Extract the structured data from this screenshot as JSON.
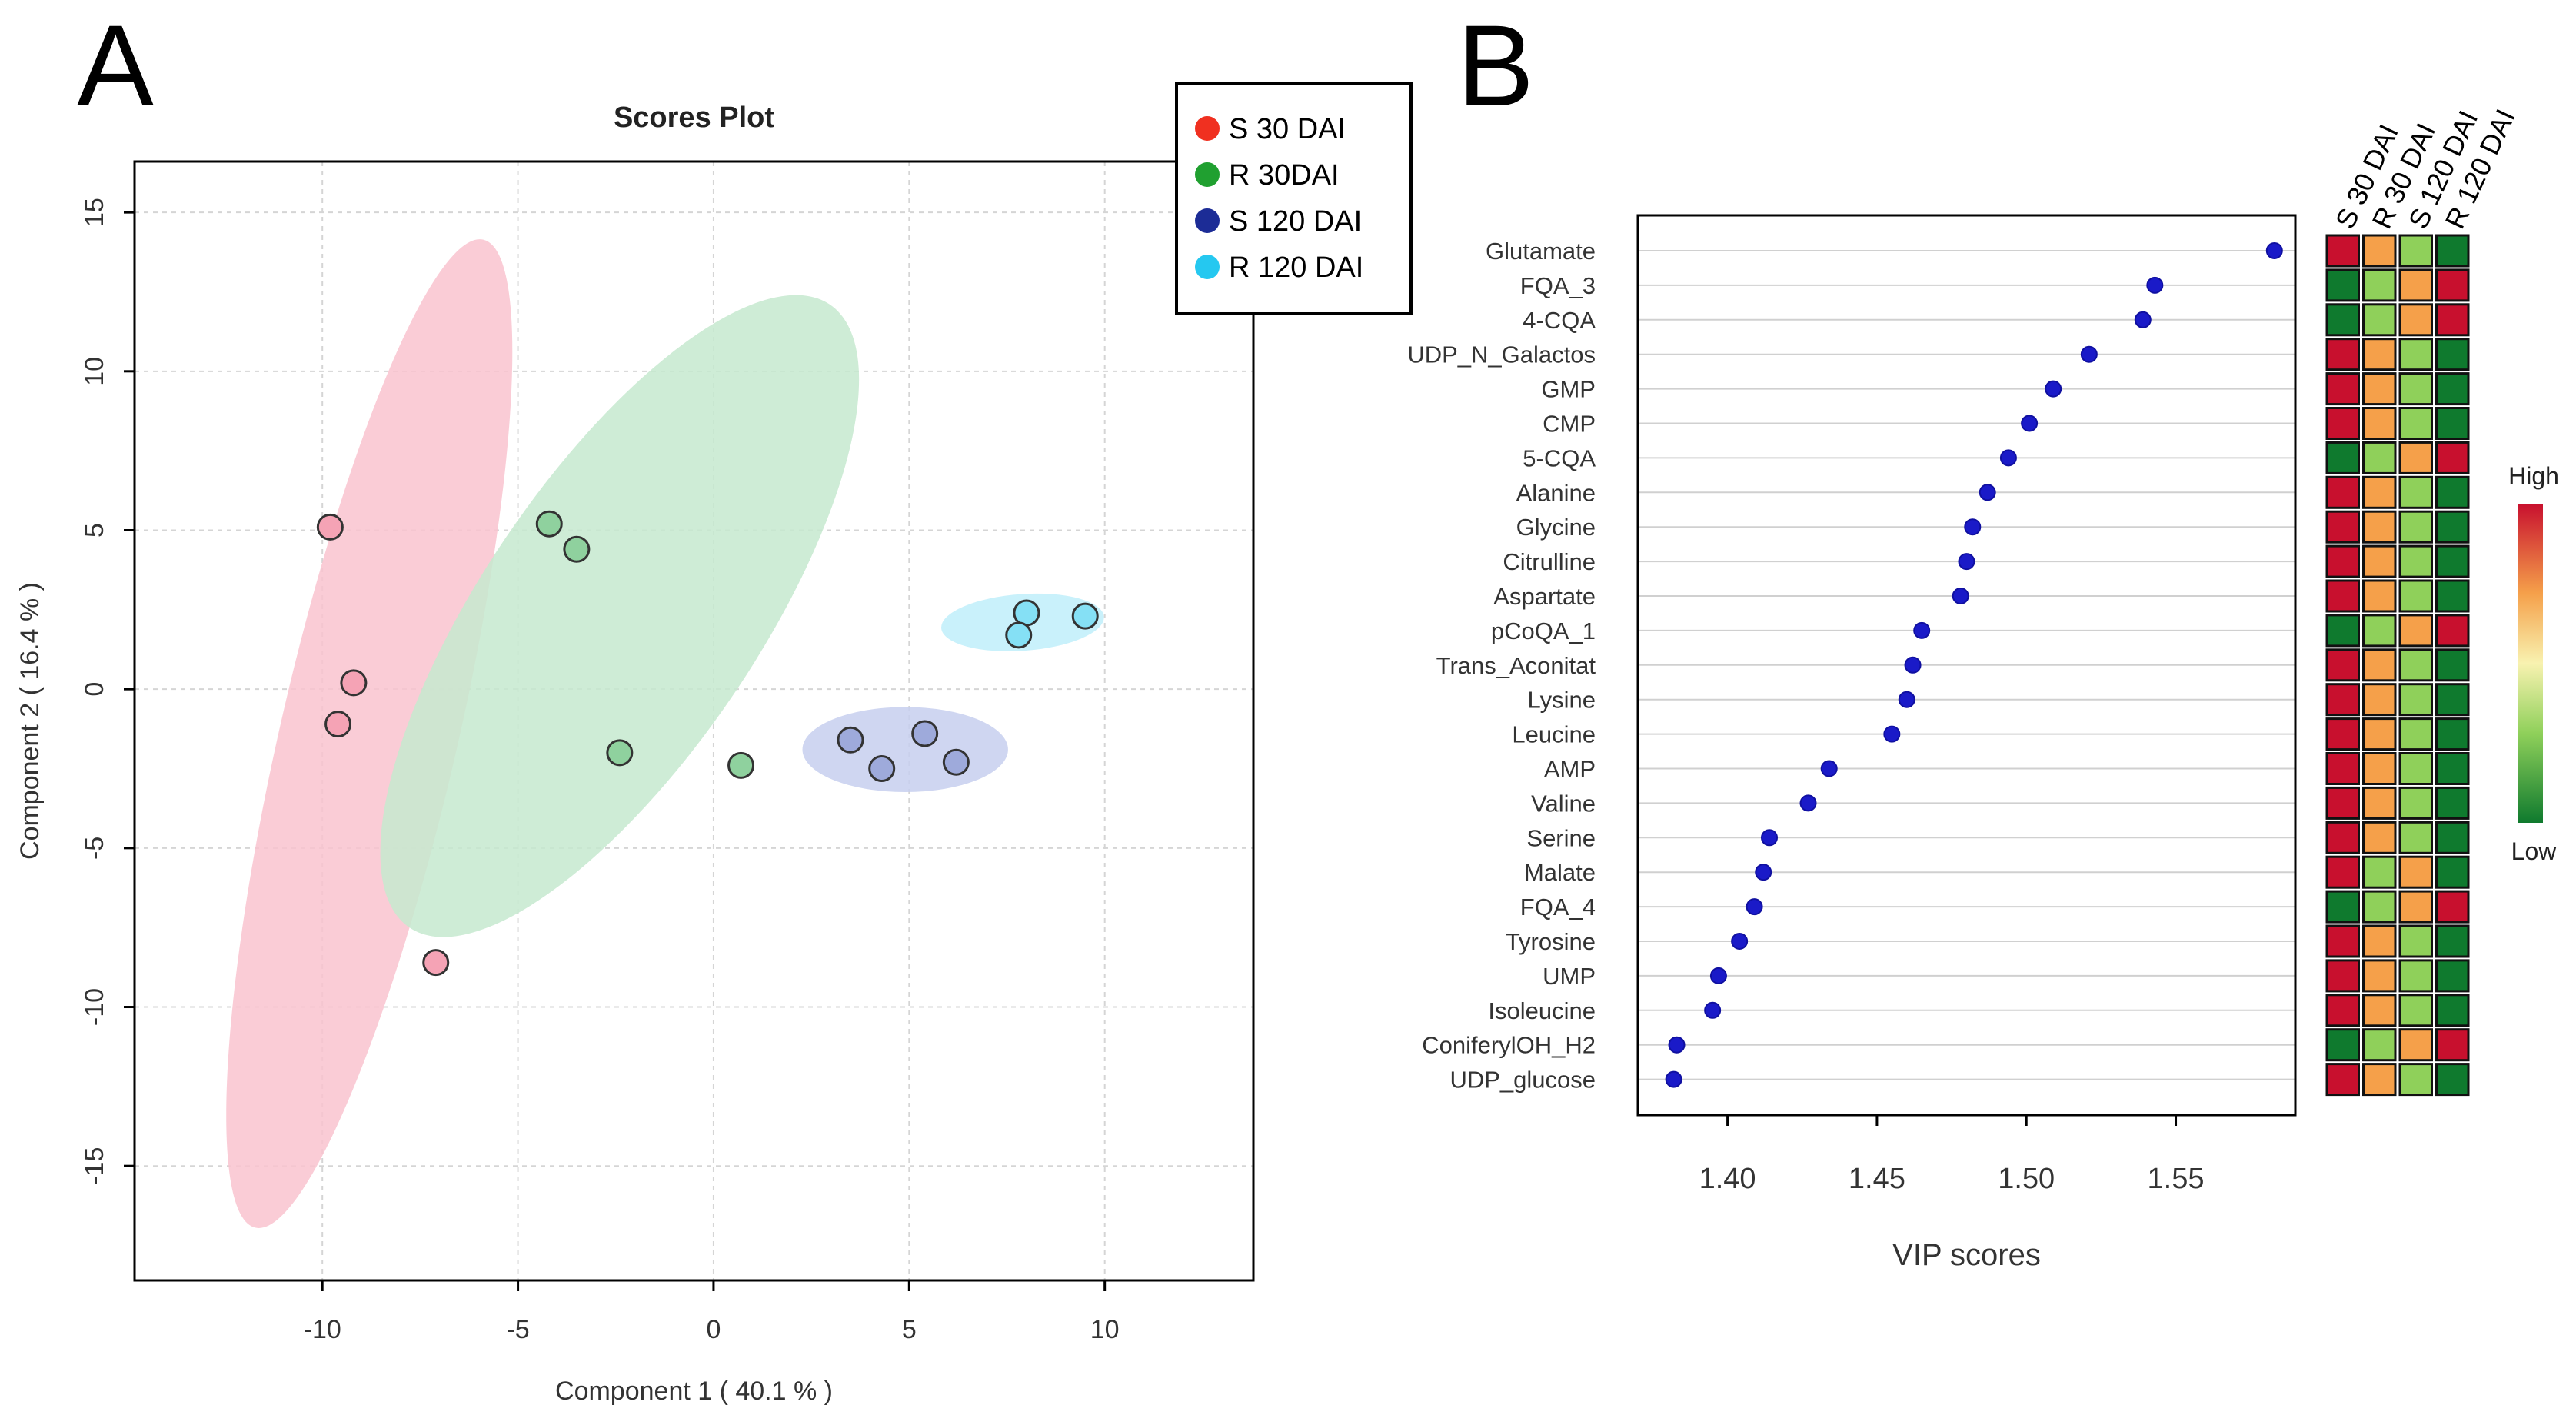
{
  "panel_labels": {
    "a": "A",
    "b": "B"
  },
  "chart_data": [
    {
      "type": "scatter",
      "title": "Scores Plot",
      "xlabel": "Component 1 ( 40.1 % )",
      "ylabel": "Component 2 ( 16.4 % )",
      "xlim": [
        -14.8,
        13.8
      ],
      "ylim": [
        -18.6,
        16.6
      ],
      "xticks": [
        "-10",
        "-5",
        "0",
        "5",
        "10"
      ],
      "xtick_values": [
        -10,
        -5,
        0,
        5,
        10
      ],
      "yticks": [
        "15",
        "10",
        "5",
        "0",
        "-5",
        "-10",
        "-15"
      ],
      "ytick_values": [
        15,
        10,
        5,
        0,
        -5,
        -10,
        -15
      ],
      "grid": true,
      "legend_position": "top-right",
      "series": [
        {
          "name": "S 30 DAI",
          "color": "#f03020",
          "fill": "#f5a3b5",
          "ellipse": "#f9c3cf",
          "points": [
            [
              -9.8,
              5.1
            ],
            [
              -9.2,
              0.2
            ],
            [
              -9.6,
              -1.1
            ],
            [
              -7.1,
              -8.6
            ]
          ],
          "ellipse_params": {
            "cx": -8.8,
            "cy": -1.4,
            "rx": 14.3,
            "ry": 2.5,
            "angle_deg": -77
          }
        },
        {
          "name": "R 30DAI",
          "color": "#20a030",
          "fill": "#8fd19e",
          "ellipse": "#c5e9cf",
          "points": [
            [
              -4.2,
              5.2
            ],
            [
              -3.5,
              4.4
            ],
            [
              -2.4,
              -2.0
            ],
            [
              0.7,
              -2.4
            ]
          ],
          "ellipse_params": {
            "cx": -2.4,
            "cy": 2.3,
            "rx": 10.6,
            "ry": 3.9,
            "angle_deg": -56
          }
        },
        {
          "name": "S 120 DAI",
          "color": "#1c2c96",
          "fill": "#9eaadb",
          "ellipse": "#c7cfee",
          "points": [
            [
              3.5,
              -1.6
            ],
            [
              4.3,
              -2.5
            ],
            [
              5.4,
              -1.4
            ],
            [
              6.2,
              -2.3
            ]
          ],
          "ellipse_params": {
            "cx": 4.9,
            "cy": -1.9,
            "rx": 2.9,
            "ry": 1.2,
            "angle_deg": 0
          }
        },
        {
          "name": "R 120 DAI",
          "color": "#25c8f0",
          "fill": "#85e0f5",
          "ellipse": "#bfeefa",
          "points": [
            [
              8.0,
              2.4
            ],
            [
              7.8,
              1.7
            ],
            [
              9.5,
              2.3
            ]
          ],
          "ellipse_params": {
            "cx": 7.9,
            "cy": 2.1,
            "rx": 2.3,
            "ry": 0.8,
            "angle_deg": -4
          }
        }
      ]
    },
    {
      "type": "dot",
      "xlabel": "VIP scores",
      "xlim": [
        1.37,
        1.59
      ],
      "xticks": [
        "1.40",
        "1.45",
        "1.50",
        "1.55"
      ],
      "xtick_values": [
        1.4,
        1.45,
        1.5,
        1.55
      ],
      "dot_color": "#1a1ac8",
      "metabolites": [
        "Glutamate",
        "FQA_3",
        "4-CQA",
        "UDP_N_Galactos",
        "GMP",
        "CMP",
        "5-CQA",
        "Alanine",
        "Glycine",
        "Citrulline",
        "Aspartate",
        "pCoQA_1",
        "Trans_Aconitat",
        "Lysine",
        "Leucine",
        "AMP",
        "Valine",
        "Serine",
        "Malate",
        "FQA_4",
        "Tyrosine",
        "UMP",
        "Isoleucine",
        "ConiferylOH_H2",
        "UDP_glucose"
      ],
      "values": [
        1.583,
        1.543,
        1.539,
        1.521,
        1.509,
        1.501,
        1.494,
        1.487,
        1.482,
        1.48,
        1.478,
        1.465,
        1.462,
        1.46,
        1.455,
        1.434,
        1.427,
        1.414,
        1.412,
        1.409,
        1.404,
        1.397,
        1.395,
        1.383,
        1.382
      ],
      "heatmap": {
        "columns": [
          "S 30 DAI",
          "R 30 DAI",
          "S 120 DAI",
          "R 120 DAI"
        ],
        "scale_labels": {
          "high": "High",
          "low": "Low"
        },
        "color_scale": {
          "high": "#c8102e",
          "mid_high": "#f5a04a",
          "mid": "#f8f2b0",
          "mid_low": "#8fd05a",
          "low": "#0f7a2e"
        },
        "cell_colors": {
          "H": "#c8102e",
          "O": "#f5a04a",
          "L": "#8fd05a",
          "G": "#0f7a2e"
        },
        "rows": [
          [
            "H",
            "O",
            "L",
            "G"
          ],
          [
            "G",
            "L",
            "O",
            "H"
          ],
          [
            "G",
            "L",
            "O",
            "H"
          ],
          [
            "H",
            "O",
            "L",
            "G"
          ],
          [
            "H",
            "O",
            "L",
            "G"
          ],
          [
            "H",
            "O",
            "L",
            "G"
          ],
          [
            "G",
            "L",
            "O",
            "H"
          ],
          [
            "H",
            "O",
            "L",
            "G"
          ],
          [
            "H",
            "O",
            "L",
            "G"
          ],
          [
            "H",
            "O",
            "L",
            "G"
          ],
          [
            "H",
            "O",
            "L",
            "G"
          ],
          [
            "G",
            "L",
            "O",
            "H"
          ],
          [
            "H",
            "O",
            "L",
            "G"
          ],
          [
            "H",
            "O",
            "L",
            "G"
          ],
          [
            "H",
            "O",
            "L",
            "G"
          ],
          [
            "H",
            "O",
            "L",
            "G"
          ],
          [
            "H",
            "O",
            "L",
            "G"
          ],
          [
            "H",
            "O",
            "L",
            "G"
          ],
          [
            "H",
            "L",
            "O",
            "G"
          ],
          [
            "G",
            "L",
            "O",
            "H"
          ],
          [
            "H",
            "O",
            "L",
            "G"
          ],
          [
            "H",
            "O",
            "L",
            "G"
          ],
          [
            "H",
            "O",
            "L",
            "G"
          ],
          [
            "G",
            "L",
            "O",
            "H"
          ],
          [
            "H",
            "O",
            "L",
            "G"
          ]
        ]
      }
    }
  ]
}
